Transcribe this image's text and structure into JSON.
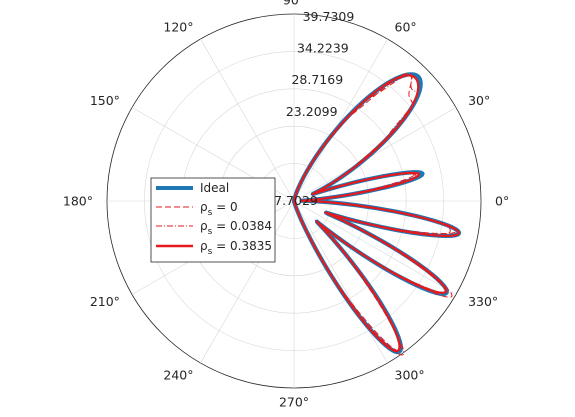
{
  "chart_data": {
    "type": "polar-line",
    "title": "",
    "theta_tick_labels": [
      "0°",
      "30°",
      "60°",
      "90°",
      "120°",
      "150°",
      "180°",
      "210°",
      "240°",
      "270°",
      "300°",
      "330°"
    ],
    "theta_ticks_deg": [
      0,
      30,
      60,
      90,
      120,
      150,
      180,
      210,
      240,
      270,
      300,
      330
    ],
    "r_tick_labels": [
      "7.7029",
      "23.2099",
      "28.7169",
      "34.2239",
      "39.7309"
    ],
    "r_ticks": [
      7.7029,
      23.2099,
      28.7169,
      34.2239,
      39.7309
    ],
    "r_grid_fractions": [
      0.0,
      0.2,
      0.4,
      0.6,
      0.8,
      1.0
    ],
    "rlim": [
      7.7029,
      39.7309
    ],
    "grid": true,
    "legend_position": "left",
    "series": [
      {
        "name": "Ideal",
        "label_main": "Ideal",
        "label_sub": "",
        "label_value": "",
        "color": "#1f77b4",
        "style": "solid-thick"
      },
      {
        "name": "ρs = 0",
        "label_main": "ρ",
        "label_sub": "s",
        "label_value": " = 0",
        "color": "#e41a1c",
        "style": "dashed"
      },
      {
        "name": "ρs = 0.0384",
        "label_main": "ρ",
        "label_sub": "s",
        "label_value": " = 0.0384",
        "color": "#e41a1c",
        "style": "dashdot"
      },
      {
        "name": "ρs = 0.3835",
        "label_main": "ρ",
        "label_sub": "s",
        "label_value": " = 0.3835",
        "color": "#e41a1c",
        "style": "solid"
      }
    ],
    "lobes": [
      {
        "center_deg": 45,
        "width_deg": 28,
        "peak": 37.8
      },
      {
        "center_deg": 12,
        "width_deg": 10,
        "peak": 30.2
      },
      {
        "center_deg": -11,
        "width_deg": 12,
        "peak": 36.5
      },
      {
        "center_deg": -31,
        "width_deg": 14,
        "peak": 38.2
      },
      {
        "center_deg": -55,
        "width_deg": 16,
        "peak": 39.2
      }
    ]
  }
}
